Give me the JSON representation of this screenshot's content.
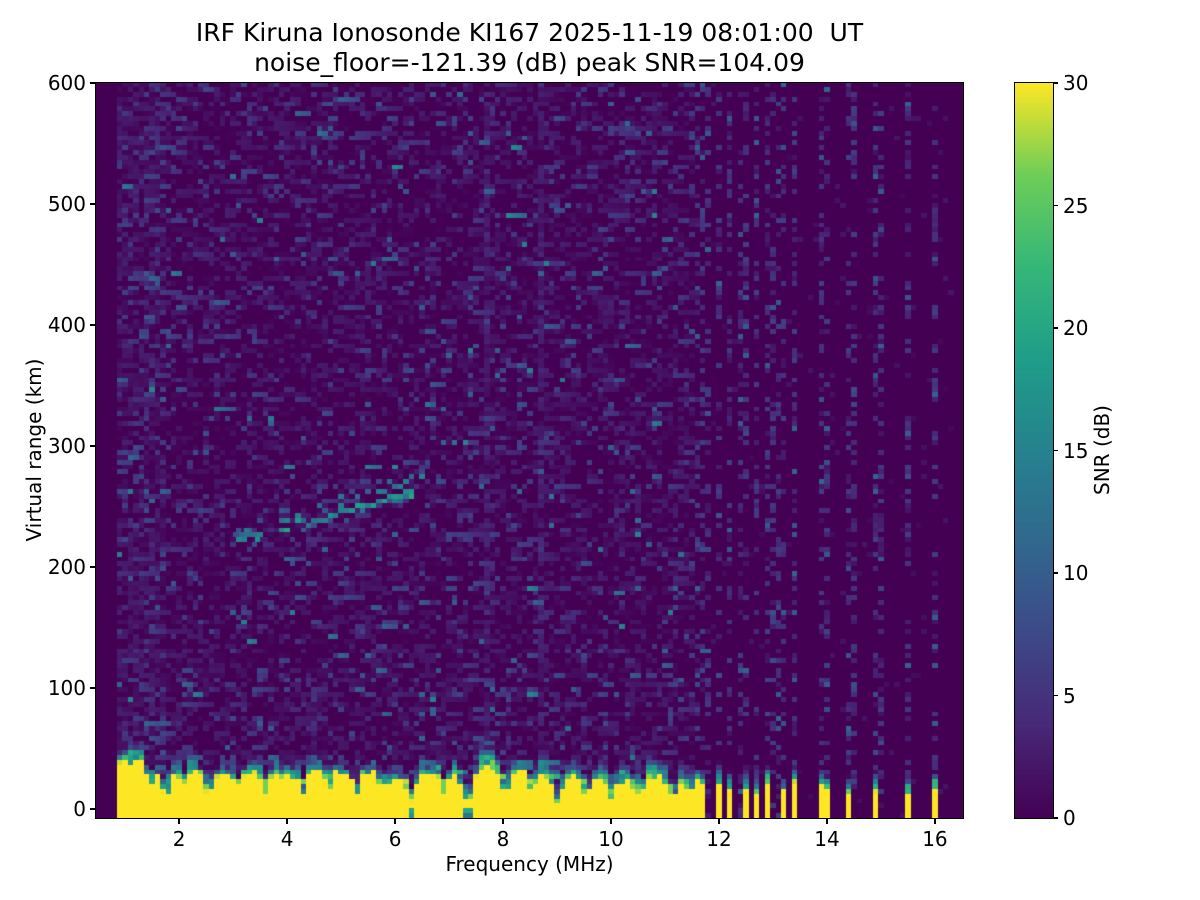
{
  "chart_data": {
    "type": "heatmap",
    "title": "IRF Kiruna Ionosonde KI167 2025-11-19 08:01:00  UT",
    "subtitle": "noise_floor=-121.39 (dB) peak SNR=104.09",
    "station": "KI167",
    "timestamp_ut": "2025-11-19 08:01:00",
    "noise_floor_db": -121.39,
    "peak_snr_db": 104.09,
    "xlabel": "Frequency (MHz)",
    "ylabel": "Virtual range (km)",
    "xlim": [
      0.46,
      16.52
    ],
    "ylim": [
      -7.4,
      600
    ],
    "xticks": [
      2,
      4,
      6,
      8,
      10,
      12,
      14,
      16
    ],
    "yticks": [
      0,
      100,
      200,
      300,
      400,
      500,
      600
    ],
    "grid": false,
    "colorbar": {
      "label": "SNR (dB)",
      "ticks": [
        0,
        5,
        10,
        15,
        20,
        25,
        30
      ],
      "vmin": 0,
      "vmax": 30,
      "cmap": "viridis",
      "cmap_stops": [
        "#440154",
        "#482878",
        "#3e4989",
        "#31688e",
        "#26828e",
        "#1f9e89",
        "#35b779",
        "#6ece58",
        "#fde725"
      ]
    },
    "features": {
      "seed": 20251119,
      "data_start_mhz": 0.85,
      "data_end_mhz": 16.4,
      "freq_step_mhz": 0.1,
      "range_step_km": 4,
      "ground_clutter": {
        "solid_end_mhz": 11.58,
        "typical_top_km": 27,
        "transition_top_km": 50,
        "dips": [
          {
            "f": 1.45,
            "d": 0.7
          },
          {
            "f": 1.75,
            "d": 0.45
          },
          {
            "f": 2.1,
            "d": 0.7
          },
          {
            "f": 2.55,
            "d": 0.45
          },
          {
            "f": 3.1,
            "d": 0.65
          },
          {
            "f": 3.6,
            "d": 0.45
          },
          {
            "f": 4.3,
            "d": 0.4
          },
          {
            "f": 4.75,
            "d": 0.7
          },
          {
            "f": 5.3,
            "d": 0.45
          },
          {
            "f": 5.75,
            "d": 0.7
          },
          {
            "f": 6.3,
            "d": 0.18
          },
          {
            "f": 6.9,
            "d": 0.4
          },
          {
            "f": 7.35,
            "d": 0.18
          },
          {
            "f": 8.05,
            "d": 0.45
          },
          {
            "f": 8.55,
            "d": 0.55
          },
          {
            "f": 9.0,
            "d": 0.18
          },
          {
            "f": 9.55,
            "d": 0.55
          },
          {
            "f": 10.0,
            "d": 0.4
          },
          {
            "f": 10.55,
            "d": 0.5
          },
          {
            "f": 11.15,
            "d": 0.45
          },
          {
            "f": 11.45,
            "d": 0.6
          }
        ]
      },
      "echo_trace": {
        "f_start_mhz": 3.05,
        "f_end_mhz": 6.28,
        "r_start_km": 222,
        "r_end_km": 263,
        "gap_mhz": [
          3.5,
          3.78
        ]
      },
      "rfi_stripes": [
        {
          "f": 11.64,
          "h": 18
        },
        {
          "f": 11.74,
          "h": 15
        },
        {
          "f": 11.98,
          "h": 20
        },
        {
          "f": 12.22,
          "h": 14
        },
        {
          "f": 12.47,
          "h": 18
        },
        {
          "f": 12.7,
          "h": 13
        },
        {
          "f": 12.94,
          "h": 17
        },
        {
          "f": 13.17,
          "h": 12
        },
        {
          "f": 13.4,
          "h": 15
        },
        {
          "f": 13.95,
          "h": 15
        },
        {
          "f": 14.43,
          "h": 11
        },
        {
          "f": 14.94,
          "h": 13
        },
        {
          "f": 15.48,
          "h": 9
        },
        {
          "f": 15.99,
          "h": 14
        }
      ],
      "faint_streaks_mhz": [
        7.7,
        8.68
      ]
    }
  }
}
